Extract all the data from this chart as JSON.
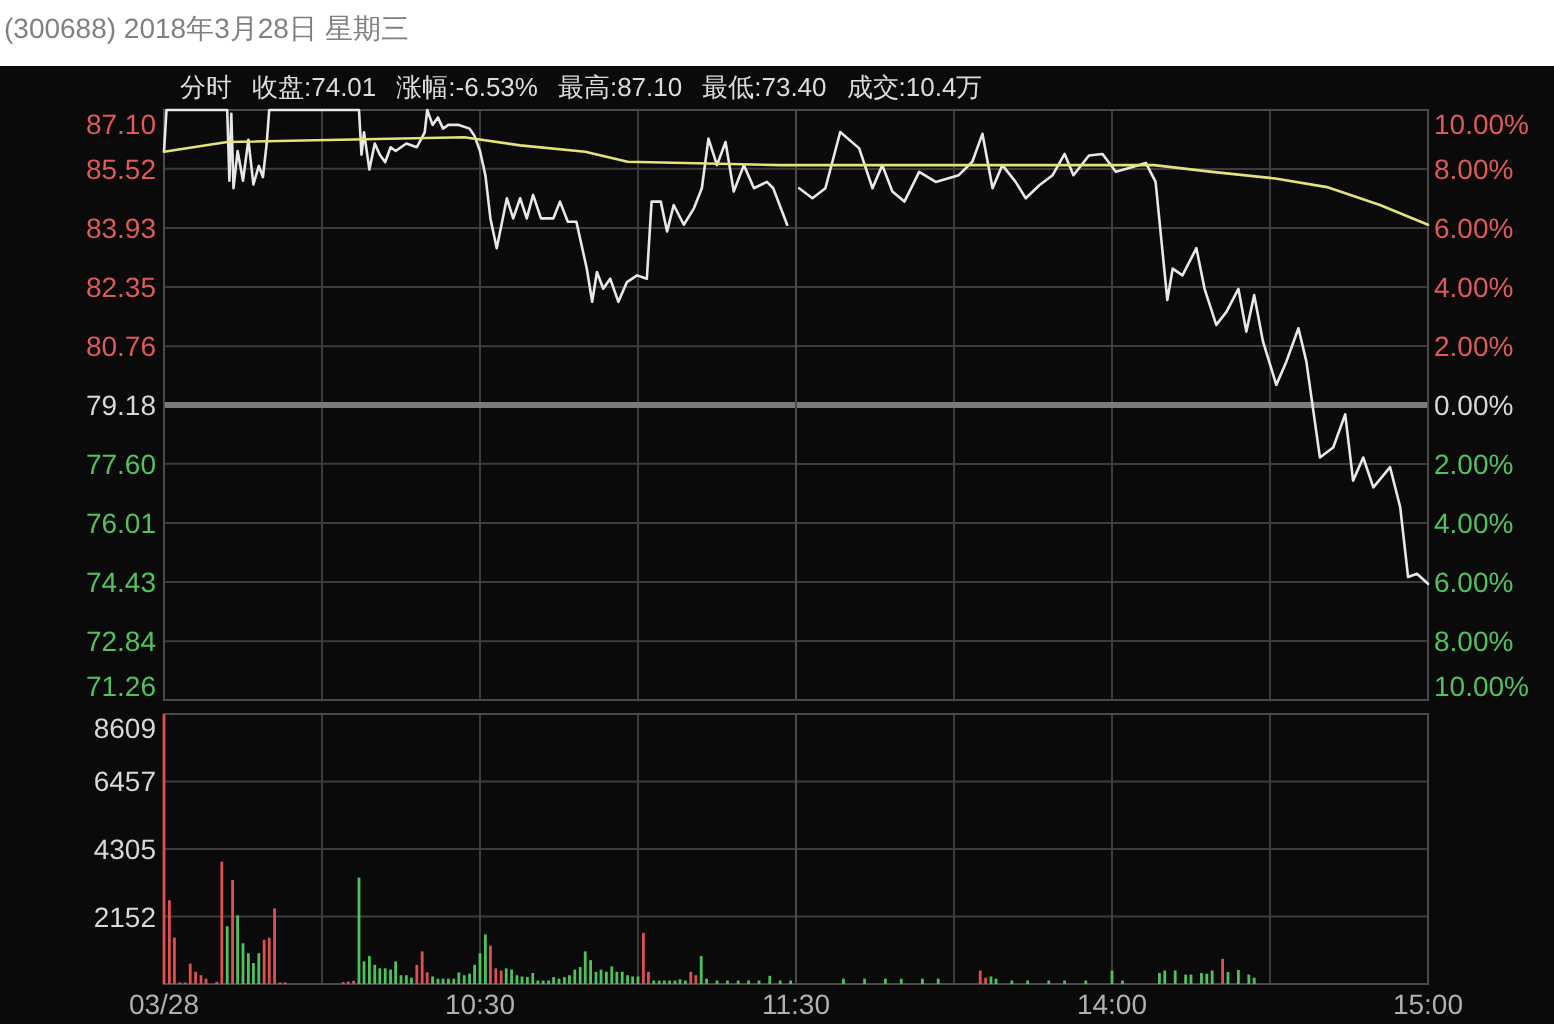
{
  "chart_data": [
    {
      "type": "line",
      "title": "(300688) 2018年3月28日 星期三",
      "annotations": [
        "分时",
        "收盘:74.01",
        "涨幅:-6.53%",
        "最高:87.10",
        "最低:73.40",
        "成交:10.4万"
      ],
      "xlim": [
        9.5,
        11.5
      ],
      "xticks": [
        9.5,
        10,
        10.5,
        11,
        11.5
      ],
      "ylim": [
        71.26,
        87.1
      ],
      "yticks": [
        71.26,
        72.84,
        74.43,
        76.01,
        {
          "value": 77.6,
          "label": "77.60"
        },
        79.18,
        80.76,
        82.35,
        83.93,
        85.52,
        {
          "value": 87.1,
          "label": "87.10"
        }
      ],
      "ref_lines": [
        {
          "axis": "y",
          "value": 79.18,
          "color": "#7a7a7a"
        }
      ],
      "grid": true,
      "tick_labels": "y",
      "series": [
        {
          "color": "#e8e8e8",
          "x": [
            9.5,
            9.508,
            9.7,
            9.707,
            9.713,
            9.72,
            9.733,
            9.75,
            9.767,
            9.783,
            9.8,
            9.813,
            9.825,
            9.833,
            10.117,
            10.125,
            10.133,
            10.15,
            10.167,
            10.183,
            10.2,
            10.217,
            10.233,
            10.267,
            10.3,
            10.325,
            10.333,
            10.35,
            10.367,
            10.383,
            10.4,
            10.433,
            10.467,
            10.483,
            10.5,
            10.517,
            10.533,
            10.553,
            10.585,
            10.605,
            10.627,
            10.648,
            10.668,
            10.693,
            10.732,
            10.753,
            10.778,
            10.805,
            10.838,
            10.855,
            10.87,
            10.89,
            10.912,
            10.938,
            10.965,
            10.997,
            11.028,
            11.043,
            11.072,
            11.092,
            11.113,
            11.145,
            11.177,
            11.202,
            11.223,
            11.25,
            11.277,
            11.303,
            11.335,
            11.367,
            11.408,
            11.428,
            11.472
          ],
          "values": [
            85.98,
            87.1,
            87.1,
            85.2,
            87.0,
            85.0,
            86.0,
            85.2,
            86.3,
            85.1,
            85.6,
            85.3,
            86.2,
            87.1,
            87.1,
            85.9,
            86.5,
            85.5,
            86.2,
            85.9,
            85.7,
            86.1,
            86.0,
            86.2,
            86.1,
            86.5,
            87.1,
            86.7,
            86.9,
            86.6,
            86.7,
            86.7,
            86.6,
            86.4,
            86.0,
            85.35,
            84.19,
            83.39,
            84.73,
            84.19,
            84.73,
            84.19,
            84.82,
            84.19,
            84.19,
            84.64,
            84.1,
            84.1,
            82.84,
            81.95,
            82.75,
            82.3,
            82.57,
            81.95,
            82.48,
            82.66,
            82.57,
            84.64,
            84.64,
            83.84,
            84.55,
            84.02,
            84.46,
            85.0,
            86.33,
            85.62,
            86.24,
            84.91,
            85.62,
            85.0,
            85.17,
            85.0,
            84.02
          ]
        },
        {
          "color": "#e3e37a",
          "x": [
            9.5,
            9.7,
            10.45,
            10.627,
            10.833,
            10.967,
            11.45,
            11.5
          ],
          "values": [
            85.98,
            86.24,
            86.37,
            86.15,
            85.98,
            85.71,
            85.62,
            85.62
          ]
        }
      ]
    },
    {
      "type": "line",
      "xlim": [
        13,
        15
      ],
      "xticks": [
        13,
        13.5,
        14,
        14.5,
        15
      ],
      "ylim": [
        71.26,
        87.1
      ],
      "y2lim": [
        -10,
        10
      ],
      "y2ticks": [
        {
          "value": -10,
          "label": "10.00%"
        },
        {
          "value": -8,
          "label": "8.00%"
        },
        {
          "value": -6,
          "label": "6.00%"
        },
        {
          "value": -4,
          "label": "4.00%"
        },
        {
          "value": -2,
          "label": "2.00%"
        },
        {
          "value": 0,
          "label": "0.00%"
        },
        {
          "value": 2,
          "label": "2.00%"
        },
        {
          "value": 4,
          "label": "4.00%"
        },
        {
          "value": 6,
          "label": "6.00%"
        },
        {
          "value": 8,
          "label": "8.00%"
        },
        {
          "value": 10,
          "label": "10.00%"
        }
      ],
      "ref_lines": [
        {
          "axis": "y",
          "value": 79.18,
          "color": "#7a7a7a"
        }
      ],
      "grid": true,
      "tick_labels": "y",
      "series": [
        {
          "color": "#e8e8e8",
          "x": [
            13.01,
            13.052,
            13.093,
            13.14,
            13.2,
            13.242,
            13.273,
            13.305,
            13.343,
            13.39,
            13.442,
            13.515,
            13.558,
            13.59,
            13.622,
            13.653,
            13.695,
            13.727,
            13.77,
            13.812,
            13.85,
            13.878,
            13.927,
            13.97,
            14.012,
            14.065,
            14.107,
            14.138,
            14.175,
            14.192,
            14.223,
            14.267,
            14.293,
            14.33,
            14.362,
            14.4,
            14.425,
            14.45,
            14.478,
            14.52,
            14.552,
            14.59,
            14.615,
            14.658,
            14.7,
            14.738,
            14.763,
            14.795,
            14.827,
            14.88,
            14.912,
            14.937,
            14.965,
            15
          ],
          "values": [
            85.0,
            84.73,
            85.0,
            86.51,
            86.07,
            85.0,
            85.62,
            84.91,
            84.64,
            85.44,
            85.17,
            85.35,
            85.71,
            86.46,
            85.0,
            85.62,
            85.17,
            84.73,
            85.08,
            85.35,
            85.92,
            85.35,
            85.88,
            85.92,
            85.44,
            85.57,
            85.68,
            85.17,
            82.0,
            82.84,
            82.66,
            83.39,
            82.3,
            81.33,
            81.68,
            82.3,
            81.15,
            82.13,
            80.88,
            79.72,
            80.35,
            81.24,
            80.35,
            77.77,
            78.04,
            78.93,
            77.15,
            77.77,
            76.97,
            77.51,
            76.44,
            74.56,
            74.65,
            74.38
          ]
        },
        {
          "color": "#e3e37a",
          "x": [
            13,
            14.133,
            14.317,
            14.517,
            14.68,
            14.848,
            15
          ],
          "values": [
            85.62,
            85.62,
            85.44,
            85.26,
            85.03,
            84.55,
            84.02
          ]
        }
      ]
    },
    {
      "type": "bar",
      "xlim": [
        9.5,
        11.5
      ],
      "xticks": [
        {
          "value": 9.5,
          "label": "03/28"
        },
        {
          "value": 10,
          "label": null
        },
        {
          "value": 10.5,
          "label": "10:30"
        },
        {
          "value": 11,
          "label": null
        },
        {
          "value": 11.5,
          "label": "11:30"
        }
      ],
      "ylim": [
        0,
        8609
      ],
      "yticks": [
        2152,
        4305,
        6457,
        8609
      ],
      "grid": true,
      "series": [
        {
          "color": "#e05050",
          "x": [
            9.5,
            9.517,
            9.533,
            9.55,
            9.567,
            9.583,
            9.6,
            9.617,
            9.633,
            9.65,
            9.667,
            9.683,
            9.717,
            9.817,
            9.833,
            9.85,
            9.867,
            9.883,
            9.9,
            10.067,
            10.083,
            10.1,
            10.3,
            10.317,
            10.333,
            10.533,
            10.55,
            10.567,
            11.017,
            11.033,
            11.167,
            11.183
          ],
          "values": [
            8600,
            2670,
            1480,
            50,
            50,
            650,
            390,
            280,
            170,
            null,
            70,
            3900,
            3320,
            1410,
            1480,
            2410,
            50,
            50,
            null,
            60,
            80,
            100,
            610,
            1040,
            370,
            1220,
            500,
            430,
            1630,
            390,
            390,
            280
          ]
        },
        {
          "color": "#4cc45a",
          "x": [
            9.7,
            9.733,
            9.75,
            9.767,
            9.783,
            9.8,
            10.117,
            10.133,
            10.15,
            10.167,
            10.183,
            10.2,
            10.217,
            10.233,
            10.25,
            10.267,
            10.283,
            10.35,
            10.367,
            10.383,
            10.4,
            10.417,
            10.433,
            10.45,
            10.467,
            10.483,
            10.5,
            10.517,
            10.583,
            10.6,
            10.617,
            10.633,
            10.65,
            10.667,
            10.683,
            10.7,
            10.717,
            10.733,
            10.75,
            10.767,
            10.783,
            10.8,
            10.817,
            10.833,
            10.85,
            10.867,
            10.883,
            10.9,
            10.917,
            10.933,
            10.95,
            10.967,
            10.983,
            11,
            11.05,
            11.067,
            11.083,
            11.1,
            11.117,
            11.133,
            11.15,
            11.2,
            11.217,
            11.25,
            11.283,
            11.317,
            11.35,
            11.383,
            11.417,
            11.45,
            11.483
          ],
          "values": [
            1840,
            2190,
            1300,
            980,
            670,
            980,
            3390,
            720,
            890,
            610,
            500,
            500,
            460,
            720,
            280,
            280,
            200,
            240,
            170,
            170,
            170,
            170,
            370,
            280,
            330,
            610,
            980,
            1580,
            500,
            460,
            280,
            240,
            220,
            350,
            110,
            110,
            110,
            220,
            170,
            220,
            280,
            460,
            540,
            1040,
            760,
            390,
            460,
            390,
            560,
            390,
            390,
            280,
            240,
            240,
            110,
            110,
            110,
            110,
            110,
            150,
            110,
            890,
            170,
            110,
            110,
            110,
            110,
            110,
            260,
            110,
            110
          ]
        }
      ]
    },
    {
      "type": "bar",
      "xlim": [
        13,
        15
      ],
      "xticks": [
        {
          "value": 13,
          "label": null
        },
        {
          "value": 13.5,
          "label": null
        },
        {
          "value": 14,
          "label": "14:00"
        },
        {
          "value": 14.5,
          "label": null
        },
        {
          "value": 15,
          "label": "15:00"
        }
      ],
      "ylim": [
        0,
        8609
      ],
      "yticks": [
        {
          "value": 2152,
          "label": null
        },
        {
          "value": 4305,
          "label": null
        },
        {
          "value": 6457,
          "label": null
        },
        {
          "value": 8609,
          "label": null
        }
      ],
      "grid": true,
      "tick_labels": "x",
      "series": [
        {
          "color": "#e05050",
          "x": [
            13.583,
            13.6,
            14.35
          ],
          "values": [
            430,
            200,
            800
          ]
        },
        {
          "color": "#4cc45a",
          "x": [
            13.15,
            13.217,
            13.283,
            13.333,
            13.4,
            13.45,
            13.617,
            13.633,
            13.683,
            13.733,
            13.8,
            13.85,
            13.917,
            14,
            14.033,
            14.15,
            14.167,
            14.2,
            14.233,
            14.25,
            14.283,
            14.3,
            14.317,
            14.367,
            14.4,
            14.433,
            14.45
          ],
          "values": [
            170,
            170,
            170,
            170,
            170,
            170,
            240,
            170,
            110,
            110,
            110,
            110,
            110,
            430,
            110,
            350,
            430,
            430,
            300,
            300,
            350,
            330,
            430,
            380,
            450,
            300,
            200
          ]
        }
      ]
    }
  ]
}
